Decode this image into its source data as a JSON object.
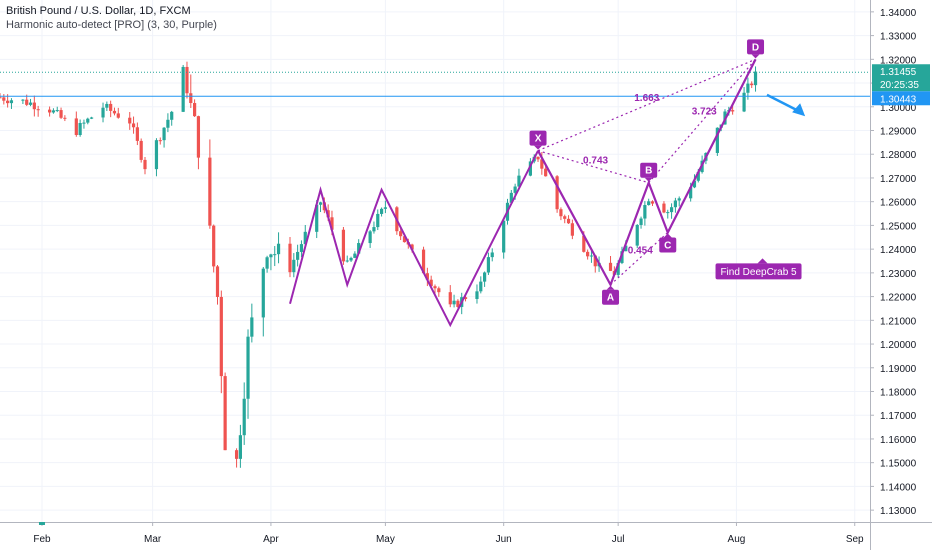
{
  "header": {
    "symbol": "British Pound / U.S. Dollar, 1D, FXCM",
    "indicator": "Harmonic auto-detect [PRO] (3, 30, Purple)"
  },
  "colors": {
    "up": "#26a69a",
    "down": "#ef5350",
    "pattern": "#9c27b0",
    "blue_line": "#2196f3",
    "last_price_bg": "#26a69a",
    "level_bg": "#2196f3"
  },
  "chart_data": {
    "type": "candlestick",
    "title": "British Pound / U.S. Dollar, 1D, FXCM",
    "y_axis": {
      "side": "right",
      "min": 1.125,
      "max": 1.345,
      "tick_labels": [
        "1.34000",
        "1.33000",
        "1.32000",
        "1.31000",
        "1.30000",
        "1.29000",
        "1.28000",
        "1.27000",
        "1.26000",
        "1.25000",
        "1.24000",
        "1.23000",
        "1.22000",
        "1.21000",
        "1.20000",
        "1.19000",
        "1.18000",
        "1.17000",
        "1.16000",
        "1.15000",
        "1.14000",
        "1.13000"
      ]
    },
    "x_axis": {
      "start_date": "2020-01-21",
      "end_date": "2020-09-05",
      "tick_labels": [
        {
          "label": "Feb",
          "date": "2020-02-01",
          "highlight": true
        },
        {
          "label": "Mar",
          "date": "2020-03-01",
          "highlight": false
        },
        {
          "label": "Apr",
          "date": "2020-04-01",
          "highlight": false
        },
        {
          "label": "May",
          "date": "2020-05-01",
          "highlight": false
        },
        {
          "label": "Jun",
          "date": "2020-06-01",
          "highlight": false
        },
        {
          "label": "Jul",
          "date": "2020-07-01",
          "highlight": false
        },
        {
          "label": "Aug",
          "date": "2020-08-01",
          "highlight": false
        },
        {
          "label": "Sep",
          "date": "2020-09-01",
          "highlight": false
        }
      ]
    },
    "price_labels": [
      {
        "text": "1.31455",
        "value": 1.31455,
        "kind": "last_price"
      },
      {
        "text": "20:25:35",
        "value": 1.31455,
        "kind": "countdown"
      },
      {
        "text": "1.30443",
        "value": 1.30443,
        "kind": "horizontal_level"
      }
    ],
    "candle_waypoints": [
      {
        "date": "2020-01-21",
        "price": 1.304
      },
      {
        "date": "2020-01-28",
        "price": 1.302
      },
      {
        "date": "2020-02-03",
        "price": 1.299
      },
      {
        "date": "2020-02-10",
        "price": 1.29
      },
      {
        "date": "2020-02-17",
        "price": 1.3
      },
      {
        "date": "2020-02-24",
        "price": 1.294
      },
      {
        "date": "2020-02-28",
        "price": 1.275
      },
      {
        "date": "2020-03-06",
        "price": 1.298
      },
      {
        "date": "2020-03-09",
        "price": 1.315
      },
      {
        "date": "2020-03-13",
        "price": 1.284
      },
      {
        "date": "2020-03-18",
        "price": 1.22
      },
      {
        "date": "2020-03-20",
        "price": 1.16
      },
      {
        "date": "2020-03-23",
        "price": 1.15
      },
      {
        "date": "2020-03-26",
        "price": 1.2
      },
      {
        "date": "2020-03-31",
        "price": 1.242
      },
      {
        "date": "2020-04-06",
        "price": 1.232
      },
      {
        "date": "2020-04-14",
        "price": 1.26
      },
      {
        "date": "2020-04-21",
        "price": 1.233
      },
      {
        "date": "2020-05-01",
        "price": 1.258
      },
      {
        "date": "2020-05-08",
        "price": 1.238
      },
      {
        "date": "2020-05-18",
        "price": 1.215
      },
      {
        "date": "2020-05-26",
        "price": 1.225
      },
      {
        "date": "2020-06-04",
        "price": 1.268
      },
      {
        "date": "2020-06-10",
        "price": 1.279
      },
      {
        "date": "2020-06-15",
        "price": 1.257
      },
      {
        "date": "2020-06-26",
        "price": 1.232
      },
      {
        "date": "2020-06-30",
        "price": 1.23
      },
      {
        "date": "2020-07-09",
        "price": 1.262
      },
      {
        "date": "2020-07-14",
        "price": 1.256
      },
      {
        "date": "2020-07-21",
        "price": 1.269
      },
      {
        "date": "2020-07-29",
        "price": 1.297
      },
      {
        "date": "2020-08-03",
        "price": 1.305
      },
      {
        "date": "2020-08-06",
        "price": 1.313
      }
    ],
    "zigzag": [
      {
        "date": "2020-04-06",
        "price": 1.217
      },
      {
        "date": "2020-04-14",
        "price": 1.265
      },
      {
        "date": "2020-04-21",
        "price": 1.225
      },
      {
        "date": "2020-04-30",
        "price": 1.265
      },
      {
        "date": "2020-05-18",
        "price": 1.208
      },
      {
        "date": "2020-06-10",
        "price": 1.2815
      }
    ],
    "harmonic_pattern": {
      "name": "DeepCrab",
      "label": "Find DeepCrab 5",
      "points": [
        {
          "label": "X",
          "date": "2020-06-10",
          "price": 1.2815
        },
        {
          "label": "A",
          "date": "2020-06-29",
          "price": 1.225
        },
        {
          "label": "B",
          "date": "2020-07-09",
          "price": 1.268
        },
        {
          "label": "C",
          "date": "2020-07-14",
          "price": 1.247
        },
        {
          "label": "D",
          "date": "2020-08-06",
          "price": 1.32
        }
      ],
      "ratios": [
        {
          "text": "0.743",
          "from": "X",
          "to": "B"
        },
        {
          "text": "0.454",
          "from": "A",
          "to": "C"
        },
        {
          "text": "3.723",
          "from": "B",
          "to": "D"
        },
        {
          "text": "1.663",
          "from": "X",
          "to": "D"
        }
      ]
    },
    "projection_arrow": {
      "from_date": "2020-08-09",
      "from_price": 1.305,
      "to_date": "2020-08-19",
      "to_price": 1.296
    }
  }
}
